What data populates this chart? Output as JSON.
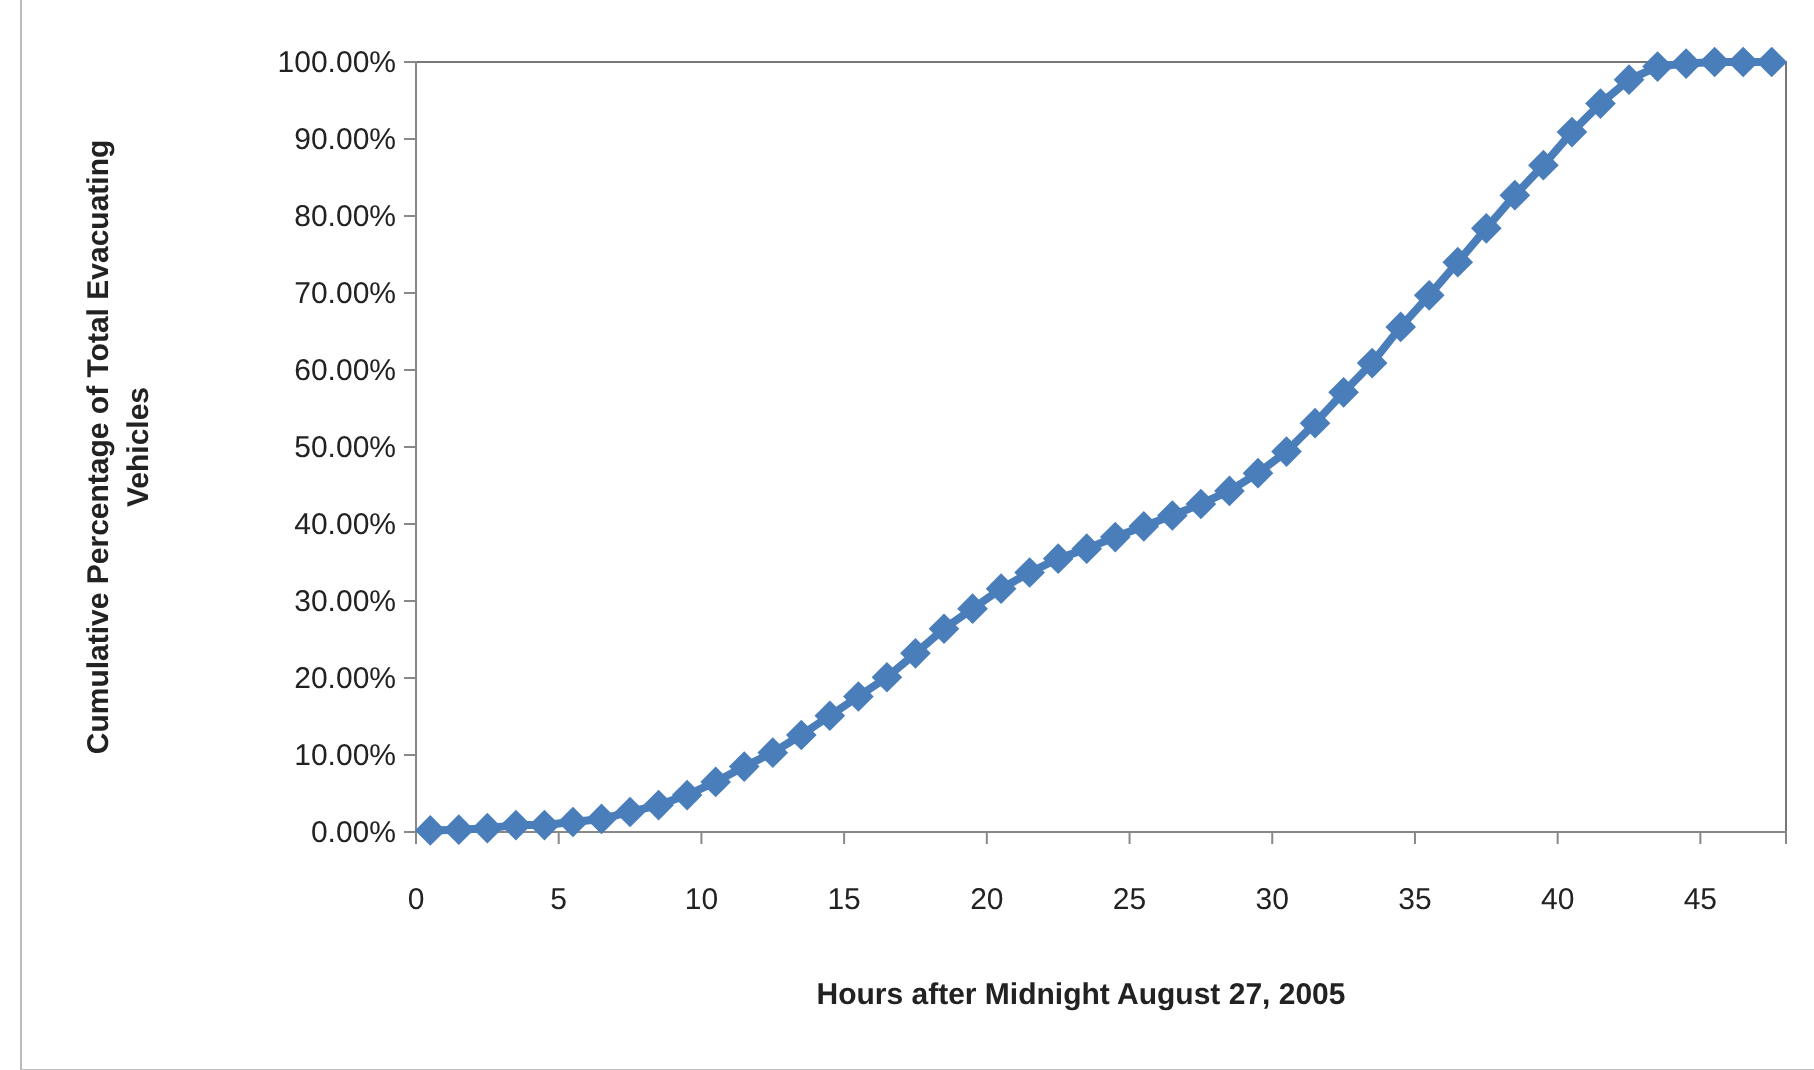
{
  "chart_data": {
    "type": "line",
    "xlabel": "Hours after Midnight August 27, 2005",
    "ylabel": "Cumulative Percentage of Total Evacuating Vehicles",
    "x": [
      0.5,
      1.5,
      2.5,
      3.5,
      4.5,
      5.5,
      6.5,
      7.5,
      8.5,
      9.5,
      10.5,
      11.5,
      12.5,
      13.5,
      14.5,
      15.5,
      16.5,
      17.5,
      18.5,
      19.5,
      20.5,
      21.5,
      22.5,
      23.5,
      24.5,
      25.5,
      26.5,
      27.5,
      28.5,
      29.5,
      30.5,
      31.5,
      32.5,
      33.5,
      34.5,
      35.5,
      36.5,
      37.5,
      38.5,
      39.5,
      40.5,
      41.5,
      42.5,
      43.5,
      44.5,
      45.5,
      46.5,
      47.5
    ],
    "series": [
      {
        "color": "#4a7ebb",
        "values": [
          0.2,
          0.3,
          0.5,
          0.9,
          0.9,
          1.3,
          1.7,
          2.6,
          3.5,
          4.8,
          6.5,
          8.5,
          10.3,
          12.6,
          15.1,
          17.6,
          20.1,
          23.2,
          26.4,
          29.0,
          31.6,
          33.7,
          35.5,
          36.8,
          38.3,
          39.7,
          41.1,
          42.6,
          44.3,
          46.6,
          49.4,
          53.1,
          57.1,
          60.9,
          65.6,
          69.7,
          74.0,
          78.4,
          82.7,
          86.6,
          90.9,
          94.6,
          97.7,
          99.4,
          99.8,
          100,
          100,
          100
        ]
      }
    ],
    "xlim": [
      0,
      48
    ],
    "xticks": [
      0,
      5,
      10,
      15,
      20,
      25,
      30,
      35,
      40,
      45
    ],
    "ylim": [
      0,
      100
    ],
    "yticks": [
      {
        "value": 0,
        "label": "0.00%"
      },
      {
        "value": 10,
        "label": "10.00%"
      },
      {
        "value": 20,
        "label": "20.00%"
      },
      {
        "value": 30,
        "label": "30.00%"
      },
      {
        "value": 40,
        "label": "40.00%"
      },
      {
        "value": 50,
        "label": "50.00%"
      },
      {
        "value": 60,
        "label": "60.00%"
      },
      {
        "value": 70,
        "label": "70.00%"
      },
      {
        "value": 80,
        "label": "80.00%"
      },
      {
        "value": 90,
        "label": "90.00%"
      },
      {
        "value": 100,
        "label": "100.00%"
      }
    ],
    "grid": false,
    "marker": "diamond",
    "line_style": "solid"
  }
}
